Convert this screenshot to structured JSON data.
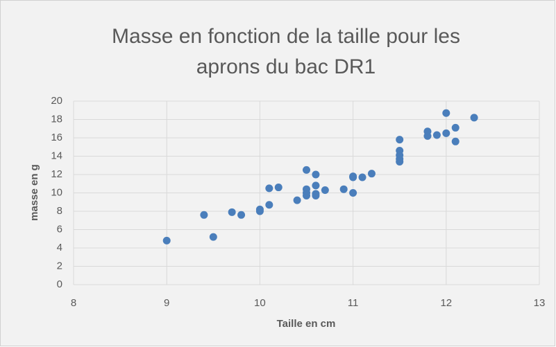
{
  "chart_data": {
    "type": "scatter",
    "title": [
      "Masse en fonction de la taille pour les",
      "aprons du bac DR1"
    ],
    "x_label": "Taille en cm",
    "y_label": "masse en g",
    "series": [
      {
        "color": "#4a7ebb",
        "x": [
          9,
          9.4,
          9.5,
          9.7,
          9.8,
          10,
          10,
          10.1,
          10.1,
          10.2,
          10.4,
          10.5,
          10.5,
          10.5,
          10.5,
          10.6,
          10.6,
          10.6,
          10.6,
          10.7,
          10.9,
          11,
          11,
          11,
          11.1,
          11.2,
          11.5,
          11.5,
          11.5,
          11.5,
          11.5,
          11.8,
          11.8,
          11.9,
          12,
          12,
          12.1,
          12.1,
          12.3
        ],
        "values": [
          4.8,
          7.6,
          5.2,
          7.9,
          7.6,
          8.0,
          8.2,
          10.5,
          8.7,
          10.6,
          9.2,
          12.5,
          10.4,
          10.0,
          9.7,
          12.0,
          10.8,
          9.9,
          9.7,
          10.3,
          10.4,
          11.8,
          11.7,
          10.0,
          11.7,
          12.1,
          15.8,
          14.6,
          14.1,
          13.7,
          13.4,
          16.7,
          16.2,
          16.3,
          18.7,
          16.5,
          17.1,
          15.6,
          18.2
        ]
      }
    ],
    "xlim": [
      8,
      13
    ],
    "xticks": [
      8,
      9,
      10,
      11,
      12,
      13
    ],
    "ylim": [
      0,
      20
    ],
    "yticks": [
      0,
      2,
      4,
      6,
      8,
      10,
      12,
      14,
      16,
      18,
      20
    ],
    "grid": true
  }
}
